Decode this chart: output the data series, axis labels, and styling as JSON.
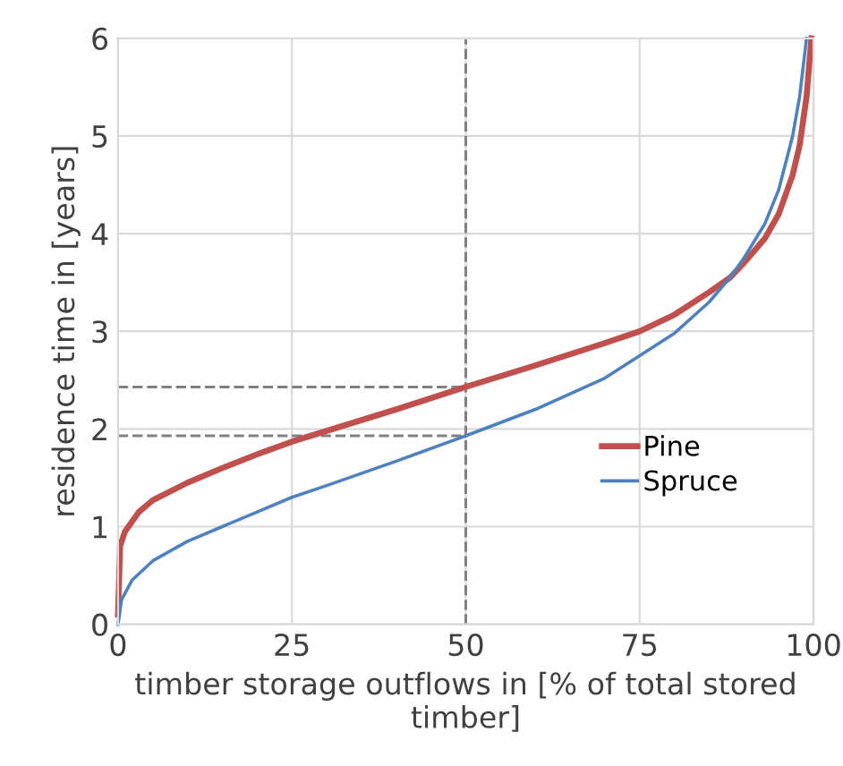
{
  "chart_data": {
    "type": "line",
    "xlabel": "timber storage outflows in [% of total stored timber]",
    "ylabel": "residence time in [years]",
    "xlim": [
      0,
      100
    ],
    "ylim": [
      0,
      6
    ],
    "xticks": [
      0,
      25,
      50,
      75,
      100
    ],
    "yticks": [
      0,
      1,
      2,
      3,
      4,
      5,
      6
    ],
    "grid": true,
    "legend": "right",
    "line_style": "solid",
    "marker": "none",
    "series": [
      {
        "name": "Pine",
        "color": "#c0504d",
        "x": [
          0,
          0.3,
          1,
          3,
          5,
          10,
          15,
          20,
          25,
          30,
          40,
          50,
          60,
          70,
          75,
          80,
          85,
          88,
          90,
          93,
          95,
          97,
          98,
          99,
          99.7
        ],
        "values": [
          0.1,
          0.8,
          0.95,
          1.15,
          1.27,
          1.45,
          1.6,
          1.74,
          1.87,
          1.98,
          2.2,
          2.43,
          2.65,
          2.88,
          3.0,
          3.17,
          3.4,
          3.55,
          3.7,
          3.95,
          4.2,
          4.6,
          4.9,
          5.4,
          6
        ]
      },
      {
        "name": "Spruce",
        "color": "#4f81bd",
        "x": [
          0,
          0.5,
          2,
          5,
          10,
          15,
          20,
          25,
          30,
          40,
          50,
          60,
          70,
          75,
          80,
          85,
          88,
          90,
          93,
          95,
          97,
          98,
          99
        ],
        "values": [
          0,
          0.25,
          0.45,
          0.65,
          0.85,
          1.0,
          1.15,
          1.3,
          1.42,
          1.67,
          1.93,
          2.2,
          2.52,
          2.75,
          2.98,
          3.3,
          3.55,
          3.75,
          4.1,
          4.45,
          5.0,
          5.4,
          6
        ]
      }
    ],
    "ref_lines": [
      {
        "axis": "x",
        "value": 50,
        "color": "#808080",
        "line_style": "dashed"
      },
      {
        "axis": "y",
        "value": 2.43,
        "color": "#808080",
        "line_style": "dashed"
      },
      {
        "axis": "y",
        "value": 1.93,
        "color": "#808080",
        "line_style": "dashed"
      }
    ]
  }
}
